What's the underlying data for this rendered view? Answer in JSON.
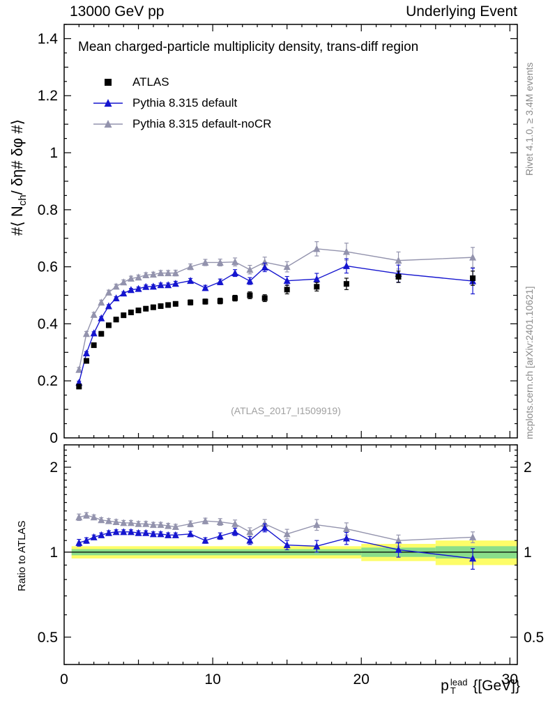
{
  "header": {
    "left": "13000 GeV pp",
    "right": "Underlying Event"
  },
  "title": "Mean charged-particle multiplicity density, trans-diff region",
  "watermark": "(ATLAS_2017_I1509919)",
  "side_notes": {
    "top_right": "Rivet 4.1.0, ≥ 3.4M events",
    "bottom_right": "mcplots.cern.ch [arXiv:2401.10621]"
  },
  "chart_data": {
    "type": "scatter",
    "title": "Mean charged-particle multiplicity density, trans-diff region",
    "x_label": {
      "base": "p",
      "sub": "T",
      "sup": "lead",
      "rest": " {[GeV]}"
    },
    "y_label_main": {
      "pre": "#⟨ N",
      "sub": "ch",
      "post": "/ δη# δφ #⟩"
    },
    "y_label_ratio": "Ratio to ATLAS",
    "legend_position": "top-left",
    "grid": false,
    "x_range": [
      0,
      30.5
    ],
    "y_range_main": [
      0,
      1.45
    ],
    "y_range_ratio": [
      0.4,
      2.4
    ],
    "ratio_scale": "log",
    "x_ticks": [
      0,
      10,
      20,
      30
    ],
    "y_ticks_main": [
      0,
      0.2,
      0.4,
      0.6,
      0.8,
      1,
      1.2,
      1.4
    ],
    "y_ticks_ratio": [
      0.5,
      1,
      2
    ],
    "x": [
      1,
      1.5,
      2,
      2.5,
      3,
      3.5,
      4,
      4.5,
      5,
      5.5,
      6,
      6.5,
      7,
      7.5,
      8.5,
      9.5,
      10.5,
      11.5,
      12.5,
      13.5,
      15,
      17,
      19,
      22.5,
      27.5
    ],
    "series": [
      {
        "name": "ATLAS",
        "marker": "square",
        "color": "#000000",
        "line": false,
        "values": [
          0.18,
          0.27,
          0.325,
          0.365,
          0.395,
          0.415,
          0.43,
          0.44,
          0.447,
          0.453,
          0.458,
          0.462,
          0.466,
          0.47,
          0.475,
          0.478,
          0.48,
          0.49,
          0.5,
          0.49,
          0.52,
          0.53,
          0.54,
          0.565,
          0.56
        ],
        "errors": [
          0.008,
          0.008,
          0.008,
          0.008,
          0.008,
          0.008,
          0.008,
          0.008,
          0.008,
          0.008,
          0.008,
          0.008,
          0.008,
          0.008,
          0.009,
          0.009,
          0.01,
          0.01,
          0.012,
          0.012,
          0.015,
          0.015,
          0.02,
          0.02,
          0.025
        ]
      },
      {
        "name": "Pythia 8.315 default",
        "marker": "triangle",
        "color": "#1515cf",
        "line": true,
        "values": [
          0.194,
          0.297,
          0.367,
          0.42,
          0.462,
          0.49,
          0.507,
          0.519,
          0.523,
          0.53,
          0.531,
          0.536,
          0.536,
          0.541,
          0.551,
          0.526,
          0.547,
          0.578,
          0.55,
          0.598,
          0.551,
          0.557,
          0.603,
          0.576,
          0.55
        ],
        "errors": [
          0.005,
          0.005,
          0.005,
          0.005,
          0.005,
          0.005,
          0.005,
          0.005,
          0.006,
          0.006,
          0.006,
          0.007,
          0.007,
          0.008,
          0.008,
          0.009,
          0.01,
          0.012,
          0.012,
          0.015,
          0.015,
          0.02,
          0.025,
          0.03,
          0.045
        ],
        "ratio": [
          1.08,
          1.1,
          1.13,
          1.15,
          1.17,
          1.18,
          1.18,
          1.18,
          1.17,
          1.17,
          1.16,
          1.16,
          1.15,
          1.15,
          1.16,
          1.1,
          1.14,
          1.18,
          1.1,
          1.22,
          1.06,
          1.05,
          1.12,
          1.02,
          0.95
        ],
        "ratio_errors": [
          0.03,
          0.025,
          0.02,
          0.02,
          0.02,
          0.02,
          0.02,
          0.02,
          0.02,
          0.02,
          0.02,
          0.02,
          0.02,
          0.02,
          0.025,
          0.025,
          0.03,
          0.035,
          0.035,
          0.04,
          0.04,
          0.05,
          0.055,
          0.06,
          0.08
        ]
      },
      {
        "name": "Pythia 8.315 default-noCR",
        "marker": "triangle",
        "color": "#9393ad",
        "line": true,
        "values": [
          0.239,
          0.365,
          0.432,
          0.475,
          0.51,
          0.531,
          0.546,
          0.559,
          0.563,
          0.571,
          0.573,
          0.578,
          0.578,
          0.578,
          0.6,
          0.615,
          0.615,
          0.617,
          0.59,
          0.616,
          0.6,
          0.663,
          0.653,
          0.622,
          0.633
        ],
        "errors": [
          0.008,
          0.008,
          0.008,
          0.008,
          0.008,
          0.008,
          0.008,
          0.008,
          0.008,
          0.008,
          0.008,
          0.009,
          0.009,
          0.01,
          0.01,
          0.011,
          0.012,
          0.014,
          0.015,
          0.018,
          0.018,
          0.025,
          0.03,
          0.03,
          0.035
        ],
        "ratio": [
          1.33,
          1.35,
          1.33,
          1.3,
          1.29,
          1.28,
          1.27,
          1.27,
          1.26,
          1.26,
          1.25,
          1.25,
          1.24,
          1.23,
          1.26,
          1.29,
          1.28,
          1.26,
          1.18,
          1.26,
          1.16,
          1.25,
          1.21,
          1.1,
          1.13
        ],
        "ratio_errors": [
          0.035,
          0.03,
          0.025,
          0.025,
          0.025,
          0.025,
          0.025,
          0.025,
          0.025,
          0.025,
          0.025,
          0.025,
          0.025,
          0.025,
          0.03,
          0.03,
          0.035,
          0.04,
          0.04,
          0.045,
          0.045,
          0.055,
          0.06,
          0.05,
          0.05
        ]
      }
    ],
    "ratio_bands": {
      "yellow": {
        "color": "#fdfd68",
        "segments": [
          {
            "x0": 0.5,
            "x1": 20,
            "lo": 0.95,
            "hi": 1.05
          },
          {
            "x0": 20,
            "x1": 25,
            "lo": 0.93,
            "hi": 1.07
          },
          {
            "x0": 25,
            "x1": 30.5,
            "lo": 0.9,
            "hi": 1.1
          }
        ]
      },
      "green": {
        "color": "#8ade8a",
        "segments": [
          {
            "x0": 0.5,
            "x1": 20,
            "lo": 0.975,
            "hi": 1.025
          },
          {
            "x0": 20,
            "x1": 25,
            "lo": 0.962,
            "hi": 1.038
          },
          {
            "x0": 25,
            "x1": 30.5,
            "lo": 0.95,
            "hi": 1.05
          }
        ]
      }
    },
    "reference_line": 1
  }
}
